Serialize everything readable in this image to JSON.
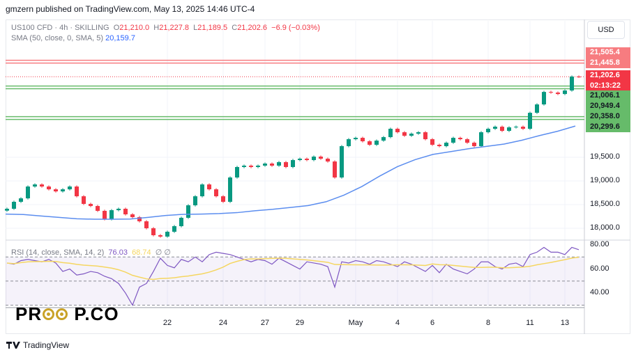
{
  "published": "gmzern published on TradingView.com, May 13, 2025 14:46 UTC-4",
  "legend": {
    "symbol": "US100 CFD · 4h · SKILLING",
    "o_label": "O",
    "open": "21,210.0",
    "h_label": "H",
    "high": "21,227.8",
    "l_label": "L",
    "low": "21,189.5",
    "c_label": "C",
    "close": "21,202.6",
    "change": "−6.9 (−0.03%)",
    "sma_label": "SMA (50, close, 0, SMA, 5)",
    "sma_value": "20,159.7"
  },
  "rsi_legend": {
    "label": "RSI (14, close, SMA, 14, 2)",
    "rsi": "76.03",
    "signal": "68.74",
    "x1": "∅",
    "x2": "∅"
  },
  "currency_button": "USD",
  "price_tags": [
    {
      "text": "21,505.4",
      "color": "#f77c80",
      "fg": "#ffffff"
    },
    {
      "text": "21,445.8",
      "color": "#f77c80",
      "fg": "#ffffff"
    },
    {
      "text": "21,202.6",
      "color": "#f23645",
      "fg": "#ffffff"
    },
    {
      "text": "02:13:22",
      "color": "#f23645",
      "fg": "#ffffff"
    },
    {
      "text": "21,006.1",
      "color": "#66bb6a",
      "fg": "#131722"
    },
    {
      "text": "20,949.4",
      "color": "#66bb6a",
      "fg": "#131722"
    },
    {
      "text": "20,358.0",
      "color": "#66bb6a",
      "fg": "#131722"
    },
    {
      "text": "20,299.6",
      "color": "#66bb6a",
      "fg": "#131722"
    }
  ],
  "price_ticks": [
    "19,500.0",
    "19,000.0",
    "18,500.0",
    "18,000.0"
  ],
  "rsi_ticks": [
    "80.00",
    "60.00",
    "40.00"
  ],
  "x_labels": [
    {
      "t": "22",
      "i": 23
    },
    {
      "t": "24",
      "i": 31
    },
    {
      "t": "27",
      "i": 37
    },
    {
      "t": "29",
      "i": 42
    },
    {
      "t": "May",
      "i": 50
    },
    {
      "t": "4",
      "i": 56
    },
    {
      "t": "6",
      "i": 61
    },
    {
      "t": "8",
      "i": 69
    },
    {
      "t": "11",
      "i": 75
    },
    {
      "t": "13",
      "i": 80
    }
  ],
  "branding": {
    "tradingview": "TradingView",
    "watermark": "PROOP.CO"
  },
  "chart_data": {
    "type": "candlestick",
    "colors": {
      "up": "#089981",
      "down": "#f23645",
      "sma": "#5b8def",
      "rsi": "#7e57c2",
      "rsi_signal": "#f5d660"
    },
    "price_range": [
      17700,
      21700
    ],
    "levels": {
      "resistance": [
        21505.4,
        21445.8
      ],
      "support": [
        21006.1,
        20949.4,
        20358.0,
        20299.6
      ],
      "last": 21202.6
    },
    "closes": [
      18412,
      18559,
      18632,
      18882,
      18926,
      18882,
      18823,
      18779,
      18823,
      18882,
      18676,
      18515,
      18470,
      18368,
      18191,
      18382,
      18412,
      18294,
      18235,
      18147,
      18000,
      17853,
      17824,
      17926,
      18044,
      18221,
      18485,
      18676,
      18926,
      18823,
      18676,
      18559,
      19073,
      19294,
      19323,
      19294,
      19323,
      19367,
      19323,
      19397,
      19294,
      19441,
      19470,
      19441,
      19514,
      19470,
      19411,
      19073,
      19735,
      19882,
      19911,
      19838,
      19764,
      19852,
      19926,
      20102,
      20029,
      19955,
      19999,
      20029,
      19882,
      19764,
      19735,
      19808,
      19911,
      19882,
      19808,
      19735,
      20029,
      20102,
      20146,
      20058,
      20132,
      20146,
      20102,
      20440,
      20617,
      20881,
      20867,
      20837,
      20911,
      21205,
      21202.6
    ],
    "sma": [
      18300,
      18290,
      18260,
      18230,
      18200,
      18191,
      18191,
      18195,
      18230,
      18270,
      18295,
      18300,
      18310,
      18330,
      18370,
      18400,
      18440,
      18480,
      18560,
      18700,
      18880,
      19100,
      19300,
      19450,
      19560,
      19620,
      19680,
      19730,
      19780,
      19860,
      19960,
      20050,
      20160
    ],
    "rsi": [
      65,
      64,
      67,
      68,
      67,
      66,
      68,
      65,
      58,
      60,
      55,
      56,
      58,
      57,
      54,
      52,
      48,
      40,
      30,
      45,
      48,
      58,
      69,
      63,
      61,
      68,
      66,
      70,
      66,
      72,
      74,
      73,
      72,
      70,
      68,
      66,
      68,
      67,
      64,
      69,
      66,
      63,
      60,
      66,
      65,
      64,
      62,
      45,
      66,
      65,
      67,
      66,
      64,
      67,
      66,
      64,
      62,
      66,
      64,
      61,
      58,
      63,
      57,
      64,
      60,
      58,
      56,
      60,
      66,
      66,
      62,
      60,
      64,
      65,
      62,
      72,
      74,
      78,
      74,
      74,
      72,
      78,
      76.03
    ],
    "rsi_range": [
      25,
      85
    ],
    "rsi_bands": [
      70,
      50,
      30
    ]
  }
}
